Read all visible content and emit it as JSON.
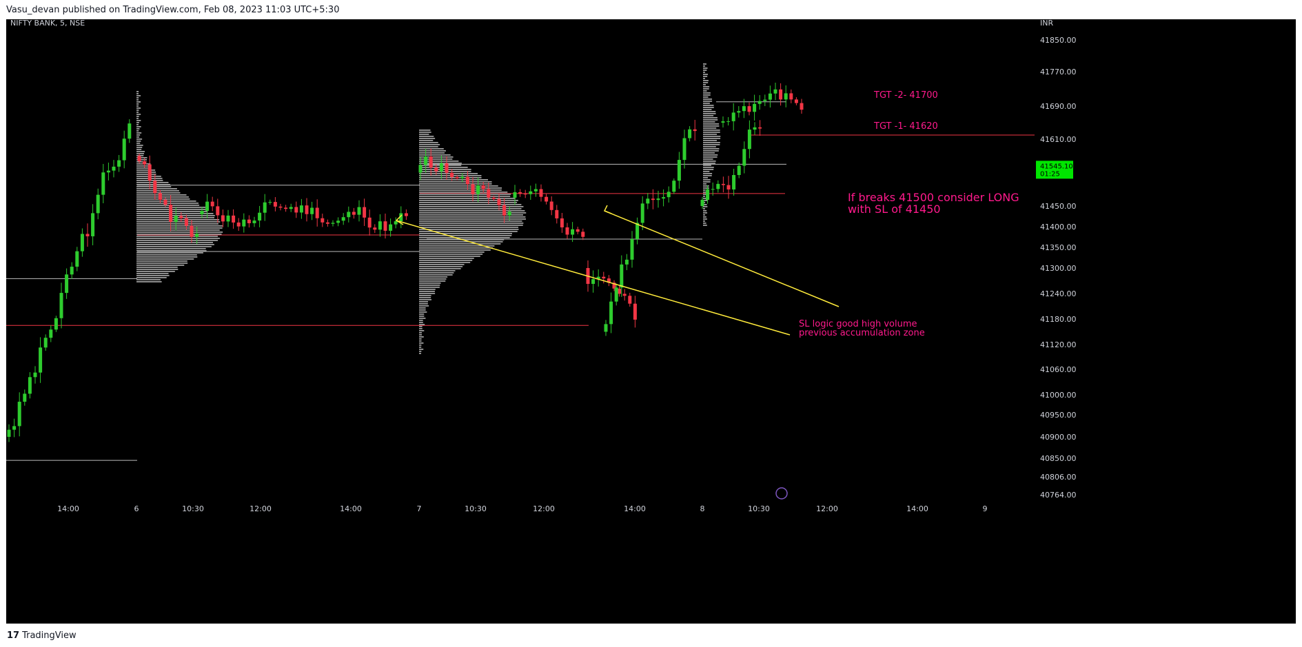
{
  "header": {
    "attribution": "Vasu_devan published on TradingView.com, Feb 08, 2023 11:03 UTC+5:30"
  },
  "footer": {
    "brand": "TradingView",
    "brand_icon": "tradingview-logo-icon"
  },
  "colors": {
    "background": "#000000",
    "up": "#2ecc2e",
    "down": "#f23645",
    "annotation": "#ff1a8c",
    "trendline": "#ffeb3b",
    "level_white": "#bdbdbd",
    "level_red": "#f23645",
    "price_tag": "#00e600"
  },
  "chart_data": {
    "type": "candlestick",
    "title": "NIFTY BANK, 5, NSE",
    "currency": "INR",
    "y_ticks": [
      "41850.00",
      "41770.00",
      "41690.00",
      "41610.00",
      "41450.00",
      "41400.00",
      "41350.00",
      "41300.00",
      "41240.00",
      "41180.00",
      "41120.00",
      "41060.00",
      "41000.00",
      "40950.00",
      "40900.00",
      "40850.00",
      "40806.00",
      "40764.00"
    ],
    "x_ticks": [
      "14:00",
      "6",
      "10:30",
      "12:00",
      "14:00",
      "7",
      "10:30",
      "12:00",
      "14:00",
      "8",
      "10:30",
      "12:00",
      "14:00",
      "9"
    ],
    "last_price": "41545.10",
    "countdown": "01:25",
    "annotations": [
      "TGT -2- 41700",
      "TGT -1- 41620",
      "If breaks 41500 consider LONG",
      "with SL of 41450",
      "SL logic good high volume",
      "previous accumulation zone"
    ],
    "levels": [
      {
        "price": 41700,
        "color": "white"
      },
      {
        "price": 41620,
        "color": "red"
      },
      {
        "price": 41550,
        "color": "white"
      },
      {
        "price": 41500,
        "color": "white"
      },
      {
        "price": 41480,
        "color": "red"
      },
      {
        "price": 41380,
        "color": "red"
      },
      {
        "price": 41370,
        "color": "white"
      },
      {
        "price": 41340,
        "color": "white"
      },
      {
        "price": 41275,
        "color": "white"
      },
      {
        "price": 41165,
        "color": "red"
      },
      {
        "price": 40845,
        "color": "white"
      }
    ],
    "legend_placement": "none",
    "grid": false
  }
}
